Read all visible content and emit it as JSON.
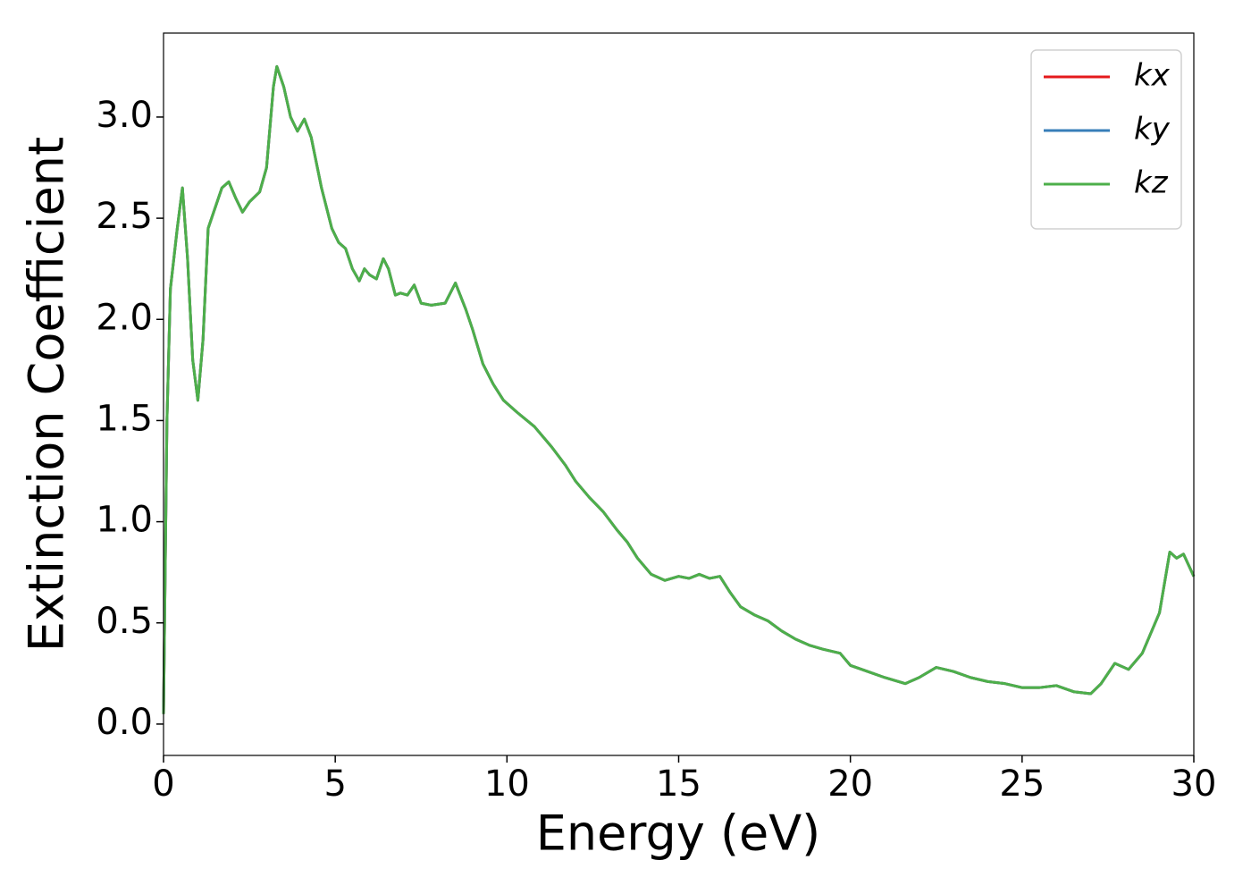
{
  "chart_data": {
    "type": "line",
    "xlabel": "Energy (eV)",
    "ylabel": "Extinction Coefficient",
    "x": [
      0,
      0.1,
      0.2,
      0.4,
      0.55,
      0.7,
      0.85,
      1.0,
      1.15,
      1.3,
      1.5,
      1.7,
      1.9,
      2.1,
      2.3,
      2.5,
      2.8,
      3.0,
      3.2,
      3.3,
      3.5,
      3.7,
      3.9,
      4.1,
      4.3,
      4.6,
      4.9,
      5.1,
      5.3,
      5.5,
      5.7,
      5.85,
      6.0,
      6.2,
      6.4,
      6.55,
      6.75,
      6.9,
      7.1,
      7.3,
      7.5,
      7.8,
      8.2,
      8.5,
      8.8,
      9.0,
      9.3,
      9.6,
      9.9,
      10.3,
      10.8,
      11.3,
      11.7,
      12.0,
      12.4,
      12.8,
      13.2,
      13.5,
      13.8,
      14.2,
      14.6,
      15.0,
      15.3,
      15.6,
      15.9,
      16.2,
      16.5,
      16.8,
      17.2,
      17.6,
      18.0,
      18.4,
      18.8,
      19.2,
      19.7,
      20.0,
      20.5,
      21.0,
      21.6,
      22.0,
      22.5,
      23.0,
      23.5,
      24.0,
      24.5,
      25.0,
      25.5,
      26.0,
      26.5,
      27.0,
      27.3,
      27.7,
      28.1,
      28.5,
      29.0,
      29.3,
      29.5,
      29.7,
      30.0
    ],
    "series": [
      {
        "name": "kx",
        "color": "#e41a1c",
        "values": [
          0.05,
          1.5,
          2.15,
          2.45,
          2.65,
          2.3,
          1.8,
          1.6,
          1.9,
          2.45,
          2.55,
          2.65,
          2.68,
          2.6,
          2.53,
          2.58,
          2.63,
          2.75,
          3.15,
          3.25,
          3.15,
          3.0,
          2.93,
          2.99,
          2.9,
          2.65,
          2.45,
          2.38,
          2.35,
          2.25,
          2.19,
          2.25,
          2.22,
          2.2,
          2.3,
          2.25,
          2.12,
          2.13,
          2.12,
          2.17,
          2.08,
          2.07,
          2.08,
          2.18,
          2.05,
          1.95,
          1.78,
          1.68,
          1.6,
          1.54,
          1.47,
          1.37,
          1.28,
          1.2,
          1.12,
          1.05,
          0.96,
          0.9,
          0.82,
          0.74,
          0.71,
          0.73,
          0.72,
          0.74,
          0.72,
          0.73,
          0.65,
          0.58,
          0.54,
          0.51,
          0.46,
          0.42,
          0.39,
          0.37,
          0.35,
          0.29,
          0.26,
          0.23,
          0.2,
          0.23,
          0.28,
          0.26,
          0.23,
          0.21,
          0.2,
          0.18,
          0.18,
          0.19,
          0.16,
          0.15,
          0.2,
          0.3,
          0.27,
          0.35,
          0.55,
          0.85,
          0.82,
          0.84,
          0.73
        ]
      },
      {
        "name": "ky",
        "color": "#377eb8",
        "values": [
          0.05,
          1.5,
          2.15,
          2.45,
          2.65,
          2.3,
          1.8,
          1.6,
          1.9,
          2.45,
          2.55,
          2.65,
          2.68,
          2.6,
          2.53,
          2.58,
          2.63,
          2.75,
          3.15,
          3.25,
          3.15,
          3.0,
          2.93,
          2.99,
          2.9,
          2.65,
          2.45,
          2.38,
          2.35,
          2.25,
          2.19,
          2.25,
          2.22,
          2.2,
          2.3,
          2.25,
          2.12,
          2.13,
          2.12,
          2.17,
          2.08,
          2.07,
          2.08,
          2.18,
          2.05,
          1.95,
          1.78,
          1.68,
          1.6,
          1.54,
          1.47,
          1.37,
          1.28,
          1.2,
          1.12,
          1.05,
          0.96,
          0.9,
          0.82,
          0.74,
          0.71,
          0.73,
          0.72,
          0.74,
          0.72,
          0.73,
          0.65,
          0.58,
          0.54,
          0.51,
          0.46,
          0.42,
          0.39,
          0.37,
          0.35,
          0.29,
          0.26,
          0.23,
          0.2,
          0.23,
          0.28,
          0.26,
          0.23,
          0.21,
          0.2,
          0.18,
          0.18,
          0.19,
          0.16,
          0.15,
          0.2,
          0.3,
          0.27,
          0.35,
          0.55,
          0.85,
          0.82,
          0.84,
          0.73
        ]
      },
      {
        "name": "kz",
        "color": "#4daf4a",
        "values": [
          0.05,
          1.5,
          2.15,
          2.45,
          2.65,
          2.3,
          1.8,
          1.6,
          1.9,
          2.45,
          2.55,
          2.65,
          2.68,
          2.6,
          2.53,
          2.58,
          2.63,
          2.75,
          3.15,
          3.25,
          3.15,
          3.0,
          2.93,
          2.99,
          2.9,
          2.65,
          2.45,
          2.38,
          2.35,
          2.25,
          2.19,
          2.25,
          2.22,
          2.2,
          2.3,
          2.25,
          2.12,
          2.13,
          2.12,
          2.17,
          2.08,
          2.07,
          2.08,
          2.18,
          2.05,
          1.95,
          1.78,
          1.68,
          1.6,
          1.54,
          1.47,
          1.37,
          1.28,
          1.2,
          1.12,
          1.05,
          0.96,
          0.9,
          0.82,
          0.74,
          0.71,
          0.73,
          0.72,
          0.74,
          0.72,
          0.73,
          0.65,
          0.58,
          0.54,
          0.51,
          0.46,
          0.42,
          0.39,
          0.37,
          0.35,
          0.29,
          0.26,
          0.23,
          0.2,
          0.23,
          0.28,
          0.26,
          0.23,
          0.21,
          0.2,
          0.18,
          0.18,
          0.19,
          0.16,
          0.15,
          0.2,
          0.3,
          0.27,
          0.35,
          0.55,
          0.85,
          0.82,
          0.84,
          0.73
        ]
      }
    ],
    "xlim": [
      0,
      30
    ],
    "xticks": [
      0,
      5,
      10,
      15,
      20,
      25,
      30
    ],
    "ylim": [
      -0.155,
      3.415
    ],
    "yticks": [
      {
        "value": 0,
        "label": "0.0"
      },
      0.5,
      {
        "value": 1,
        "label": "1.0"
      },
      1.5,
      {
        "value": 2,
        "label": "2.0"
      },
      2.5,
      {
        "value": 3,
        "label": "3.0"
      }
    ],
    "grid": false,
    "legend": "upper right"
  }
}
